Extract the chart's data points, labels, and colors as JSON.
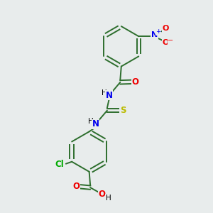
{
  "bg_color": "#e8ecec",
  "bond_color": "#2d6e2d",
  "atom_colors": {
    "N": "#0000ee",
    "O": "#ee0000",
    "S": "#bbbb00",
    "Cl": "#00aa00",
    "H": "#000000"
  },
  "figsize": [
    3.0,
    3.0
  ],
  "dpi": 100
}
